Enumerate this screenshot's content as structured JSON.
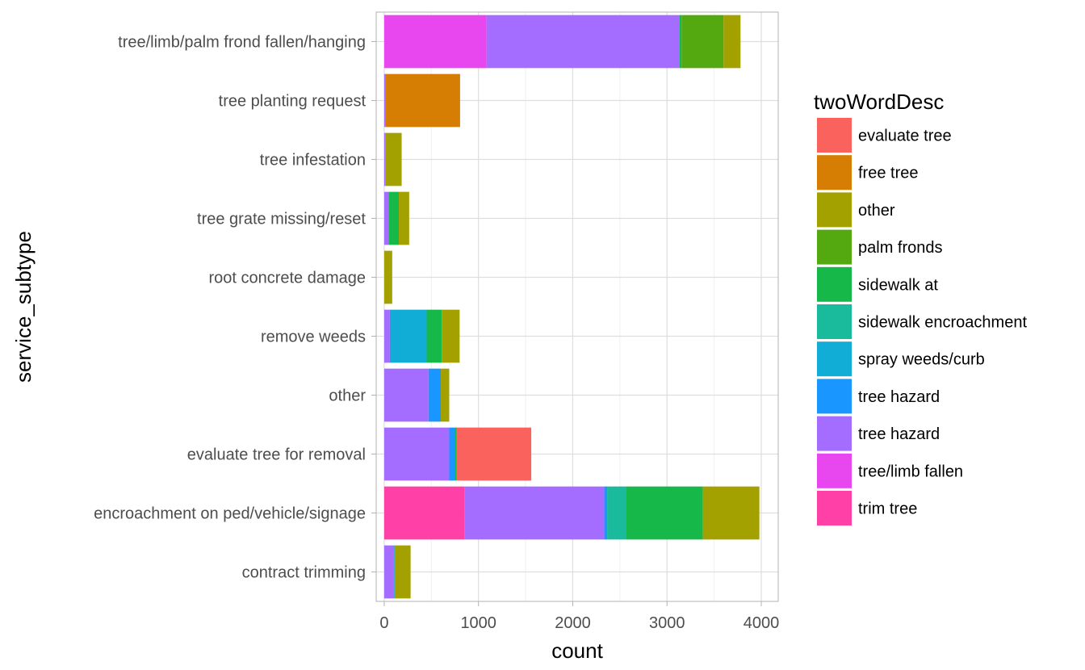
{
  "chart_data": {
    "type": "bar",
    "orientation": "horizontal",
    "stacked": true,
    "xlabel": "count",
    "ylabel": "service_subtype",
    "xlim": [
      -85,
      4180
    ],
    "x_ticks": [
      0,
      1000,
      2000,
      3000,
      4000
    ],
    "grid": true,
    "legend_position": "right",
    "legend_title": "twoWordDesc",
    "categories": [
      "tree/limb/palm frond fallen/hanging",
      "tree planting request",
      "tree infestation",
      "tree grate missing/reset",
      "root concrete damage",
      "remove weeds",
      "other",
      "evaluate tree for removal",
      "encroachment on ped/vehicle/signage",
      "contract trimming"
    ],
    "series": [
      {
        "name": "trim tree",
        "color": "#FF40A6",
        "values": [
          0,
          0,
          0,
          0,
          0,
          0,
          0,
          0,
          855,
          0
        ]
      },
      {
        "name": "tree/limb fallen",
        "color": "#E846EF",
        "values": [
          1085,
          0,
          0,
          0,
          0,
          0,
          0,
          0,
          0,
          0
        ]
      },
      {
        "name": "tree hazard",
        "color": "#A56DFF",
        "values": [
          2050,
          10,
          15,
          45,
          0,
          60,
          470,
          690,
          1480,
          100
        ]
      },
      {
        "name": "tree hazard",
        "color": "#1996FF",
        "values": [
          0,
          0,
          0,
          0,
          0,
          0,
          130,
          60,
          30,
          10
        ]
      },
      {
        "name": "spray weeds/curb",
        "color": "#12ADD6",
        "values": [
          0,
          0,
          0,
          0,
          0,
          390,
          0,
          0,
          0,
          0
        ]
      },
      {
        "name": "sidewalk encroachment",
        "color": "#19BB9C",
        "values": [
          0,
          0,
          0,
          0,
          0,
          0,
          0,
          0,
          200,
          0
        ]
      },
      {
        "name": "sidewalk  at",
        "color": "#16B84A",
        "values": [
          20,
          0,
          0,
          110,
          0,
          160,
          0,
          20,
          815,
          0
        ]
      },
      {
        "name": "palm fronds",
        "color": "#54A810",
        "values": [
          445,
          0,
          0,
          0,
          0,
          0,
          0,
          0,
          0,
          0
        ]
      },
      {
        "name": "other",
        "color": "#A3A100",
        "values": [
          180,
          0,
          170,
          110,
          85,
          190,
          90,
          0,
          600,
          170
        ]
      },
      {
        "name": "free tree",
        "color": "#D57E03",
        "values": [
          0,
          795,
          0,
          0,
          0,
          0,
          0,
          0,
          0,
          0
        ]
      },
      {
        "name": "evaluate tree",
        "color": "#F9625D",
        "values": [
          0,
          0,
          0,
          0,
          0,
          0,
          0,
          790,
          0,
          0
        ]
      }
    ],
    "legend_entries": [
      {
        "label": "evaluate tree",
        "color": "#F9625D"
      },
      {
        "label": "free tree",
        "color": "#D57E03"
      },
      {
        "label": "other",
        "color": "#A3A100"
      },
      {
        "label": "palm fronds",
        "color": "#54A810"
      },
      {
        "label": "sidewalk  at",
        "color": "#16B84A"
      },
      {
        "label": "sidewalk encroachment",
        "color": "#19BB9C"
      },
      {
        "label": "spray weeds/curb",
        "color": "#12ADD6"
      },
      {
        "label": "tree hazard",
        "color": "#1996FF"
      },
      {
        "label": "tree hazard",
        "color": "#A56DFF"
      },
      {
        "label": "tree/limb fallen",
        "color": "#E846EF"
      },
      {
        "label": "trim tree",
        "color": "#FF40A6"
      }
    ]
  }
}
